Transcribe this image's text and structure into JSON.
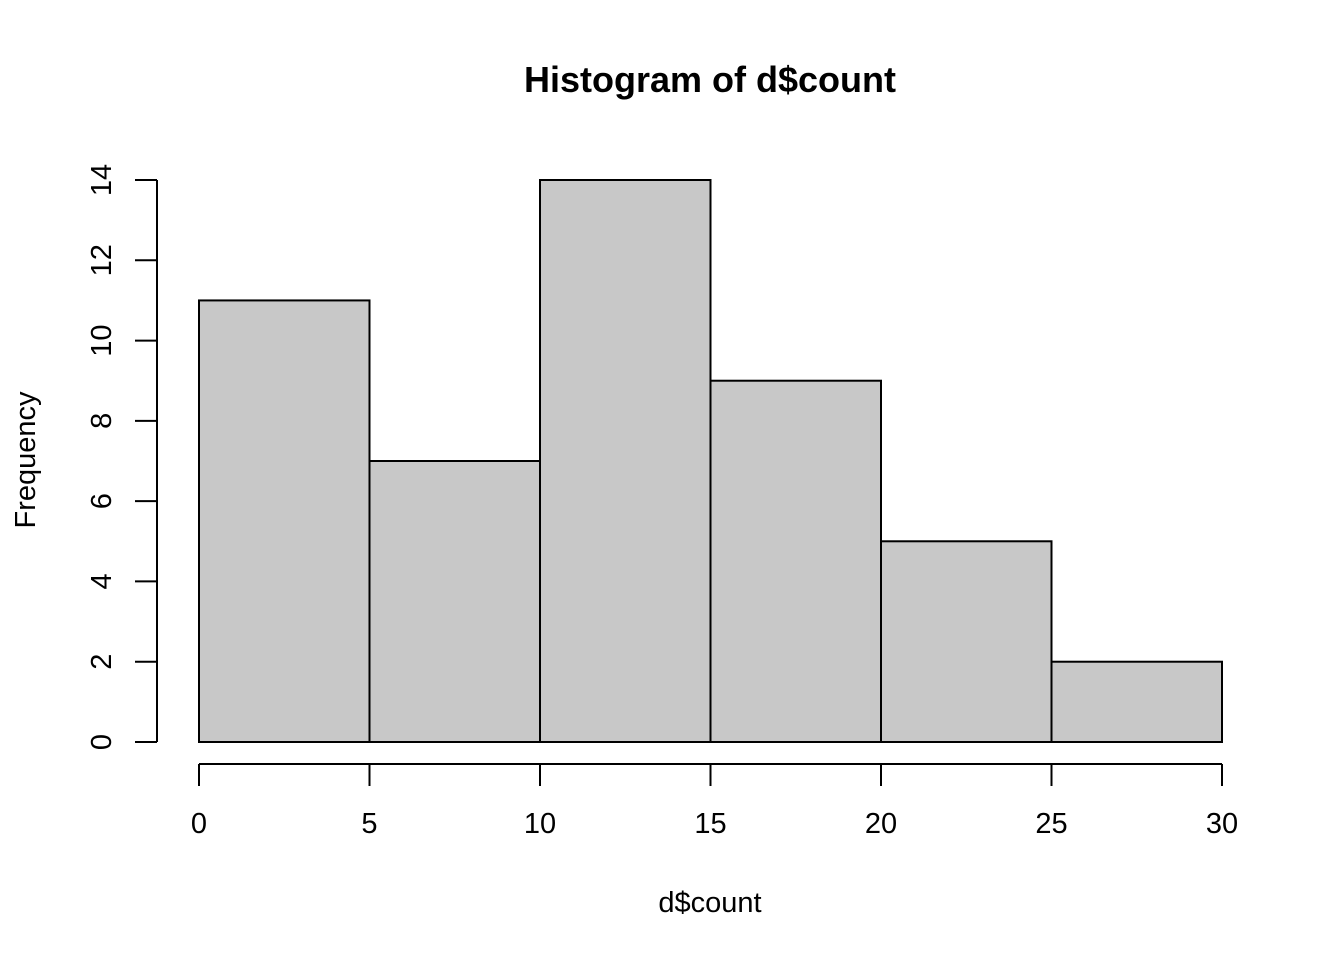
{
  "chart_data": {
    "type": "bar",
    "subtype": "histogram",
    "title": "Histogram of d$count",
    "xlabel": "d$count",
    "ylabel": "Frequency",
    "bins": [
      {
        "start": 0,
        "end": 5,
        "count": 11
      },
      {
        "start": 5,
        "end": 10,
        "count": 7
      },
      {
        "start": 10,
        "end": 15,
        "count": 14
      },
      {
        "start": 15,
        "end": 20,
        "count": 9
      },
      {
        "start": 20,
        "end": 25,
        "count": 5
      },
      {
        "start": 25,
        "end": 30,
        "count": 2
      }
    ],
    "xlim": [
      0,
      30
    ],
    "ylim": [
      0,
      14
    ],
    "x_ticks": [
      "0",
      "5",
      "10",
      "15",
      "20",
      "25",
      "30"
    ],
    "y_ticks": [
      "0",
      "2",
      "4",
      "6",
      "8",
      "10",
      "12",
      "14"
    ],
    "bar_color": "#c8c8c8",
    "bar_edge_color": "#000000",
    "grid": false,
    "legend": "none"
  }
}
